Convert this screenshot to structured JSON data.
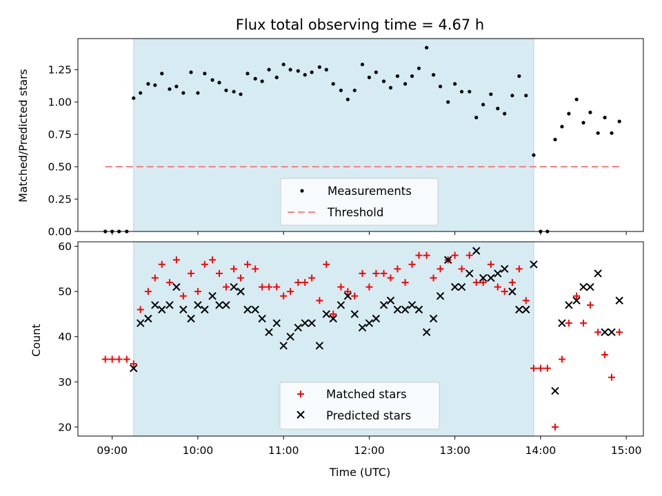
{
  "chart_data": [
    {
      "type": "scatter",
      "title": "Flux total observing time = 4.67 h",
      "xlabel": "",
      "ylabel": "Matched/Predicted stars",
      "xlim": [
        8.6,
        15.2
      ],
      "ylim": [
        0,
        1.49
      ],
      "yticks": [
        0,
        0.25,
        0.5,
        0.75,
        1.0,
        1.25
      ],
      "ytick_labels": [
        "0.00",
        "0.25",
        "0.50",
        "0.75",
        "1.00",
        "1.25"
      ],
      "shaded_interval": [
        9.25,
        13.92
      ],
      "threshold": {
        "name": "Threshold",
        "value": 0.5,
        "x_range": [
          8.92,
          14.92
        ],
        "color": "#ff7f7f"
      },
      "legend": [
        "Measurements",
        "Threshold"
      ],
      "series": [
        {
          "name": "Measurements",
          "color": "#000000",
          "x": [
            8.92,
            9.0,
            9.08,
            9.17,
            9.25,
            9.33,
            9.42,
            9.5,
            9.58,
            9.67,
            9.75,
            9.83,
            9.92,
            10.0,
            10.08,
            10.17,
            10.25,
            10.33,
            10.42,
            10.5,
            10.58,
            10.67,
            10.75,
            10.83,
            10.92,
            11.0,
            11.08,
            11.17,
            11.25,
            11.33,
            11.42,
            11.5,
            11.58,
            11.67,
            11.75,
            11.83,
            11.92,
            12.0,
            12.08,
            12.17,
            12.25,
            12.33,
            12.42,
            12.5,
            12.58,
            12.67,
            12.75,
            12.83,
            12.92,
            13.0,
            13.08,
            13.17,
            13.25,
            13.33,
            13.42,
            13.5,
            13.58,
            13.67,
            13.75,
            13.83,
            13.92,
            14.0,
            14.08,
            14.17,
            14.25,
            14.33,
            14.42,
            14.5,
            14.58,
            14.67,
            14.75,
            14.83,
            14.92
          ],
          "y": [
            0,
            0,
            0,
            0,
            1.03,
            1.07,
            1.14,
            1.13,
            1.22,
            1.1,
            1.12,
            1.07,
            1.23,
            1.07,
            1.22,
            1.17,
            1.15,
            1.09,
            1.08,
            1.06,
            1.22,
            1.18,
            1.16,
            1.25,
            1.19,
            1.29,
            1.25,
            1.24,
            1.21,
            1.23,
            1.27,
            1.25,
            1.14,
            1.09,
            1.02,
            1.09,
            1.29,
            1.19,
            1.23,
            1.16,
            1.11,
            1.2,
            1.14,
            1.2,
            1.26,
            1.42,
            1.21,
            1.12,
            1.0,
            1.14,
            1.08,
            1.08,
            0.88,
            0.98,
            1.06,
            0.95,
            0.91,
            1.05,
            1.2,
            1.05,
            0.59,
            0,
            0,
            0.71,
            0.81,
            0.91,
            1.02,
            0.84,
            0.92,
            0.76,
            0.88,
            0.76,
            0.85
          ]
        }
      ]
    },
    {
      "type": "scatter",
      "title": "",
      "xlabel": "Time (UTC)",
      "ylabel": "Count",
      "xlim": [
        8.6,
        15.2
      ],
      "ylim": [
        18,
        61
      ],
      "yticks": [
        20,
        30,
        40,
        50,
        60
      ],
      "ytick_labels": [
        "20",
        "30",
        "40",
        "50",
        "60"
      ],
      "xticks": [
        9,
        10,
        11,
        12,
        13,
        14,
        15
      ],
      "xtick_labels": [
        "09:00",
        "10:00",
        "11:00",
        "12:00",
        "13:00",
        "14:00",
        "15:00"
      ],
      "shaded_interval": [
        9.25,
        13.92
      ],
      "legend": [
        "Matched stars",
        "Predicted stars"
      ],
      "series": [
        {
          "name": "Matched stars",
          "marker": "+",
          "color": "#ff0000",
          "x": [
            8.92,
            9.0,
            9.08,
            9.17,
            9.25,
            9.33,
            9.42,
            9.5,
            9.58,
            9.67,
            9.75,
            9.83,
            9.92,
            10.0,
            10.08,
            10.17,
            10.25,
            10.33,
            10.42,
            10.5,
            10.58,
            10.67,
            10.75,
            10.83,
            10.92,
            11.0,
            11.08,
            11.17,
            11.25,
            11.33,
            11.42,
            11.5,
            11.58,
            11.67,
            11.75,
            11.83,
            11.92,
            12.0,
            12.08,
            12.17,
            12.25,
            12.33,
            12.42,
            12.5,
            12.58,
            12.67,
            12.75,
            12.83,
            12.92,
            13.0,
            13.08,
            13.17,
            13.25,
            13.33,
            13.42,
            13.5,
            13.58,
            13.67,
            13.75,
            13.83,
            13.92,
            14.0,
            14.08,
            14.17,
            14.25,
            14.33,
            14.42,
            14.5,
            14.58,
            14.67,
            14.75,
            14.83,
            14.92
          ],
          "y": [
            35,
            35,
            35,
            35,
            34,
            46,
            50,
            53,
            56,
            52,
            57,
            49,
            54,
            50,
            56,
            57,
            54,
            51,
            55,
            53,
            56,
            55,
            51,
            51,
            51,
            49,
            50,
            52,
            52,
            53,
            48,
            56,
            45,
            51,
            50,
            49,
            54,
            51,
            54,
            54,
            53,
            55,
            52,
            56,
            58,
            58,
            53,
            55,
            57,
            58,
            55,
            58,
            52,
            52,
            56,
            51,
            50,
            52,
            55,
            48,
            33,
            33,
            33,
            20,
            35,
            43,
            49,
            43,
            47,
            41,
            36,
            31,
            41
          ]
        },
        {
          "name": "Predicted stars",
          "marker": "x",
          "color": "#000000",
          "x": [
            9.25,
            9.33,
            9.42,
            9.5,
            9.58,
            9.67,
            9.75,
            9.83,
            9.92,
            10.0,
            10.08,
            10.17,
            10.25,
            10.33,
            10.42,
            10.5,
            10.58,
            10.67,
            10.75,
            10.83,
            10.92,
            11.0,
            11.08,
            11.17,
            11.25,
            11.33,
            11.42,
            11.5,
            11.58,
            11.67,
            11.75,
            11.83,
            11.92,
            12.0,
            12.08,
            12.17,
            12.25,
            12.33,
            12.42,
            12.5,
            12.58,
            12.67,
            12.75,
            12.83,
            12.92,
            13.0,
            13.08,
            13.17,
            13.25,
            13.33,
            13.42,
            13.5,
            13.58,
            13.67,
            13.75,
            13.83,
            13.92,
            14.17,
            14.25,
            14.33,
            14.42,
            14.5,
            14.58,
            14.67,
            14.75,
            14.83,
            14.92
          ],
          "y": [
            33,
            43,
            44,
            47,
            46,
            47,
            51,
            46,
            44,
            47,
            46,
            49,
            47,
            47,
            51,
            50,
            46,
            46,
            44,
            41,
            43,
            38,
            40,
            42,
            43,
            43,
            38,
            45,
            44,
            47,
            49,
            45,
            42,
            43,
            44,
            47,
            48,
            46,
            46,
            47,
            46,
            41,
            44,
            49,
            57,
            51,
            51,
            54,
            59,
            53,
            53,
            54,
            55,
            50,
            46,
            46,
            56,
            28,
            43,
            47,
            48,
            51,
            51,
            54,
            41,
            41,
            48
          ]
        }
      ]
    }
  ]
}
